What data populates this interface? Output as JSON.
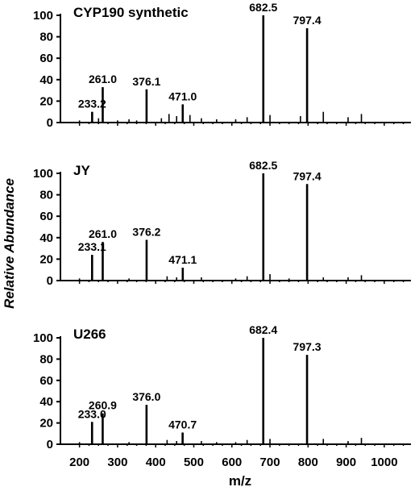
{
  "figure": {
    "ylabel": "Relative Abundance",
    "xlabel": "m/z"
  },
  "chart_data": [
    {
      "type": "bar",
      "title": "CYP190 synthetic",
      "xlim": [
        150,
        1070
      ],
      "ylim": [
        0,
        100
      ],
      "y_ticks": [
        0,
        20,
        40,
        60,
        80,
        100
      ],
      "peaks": [
        {
          "x": 233.2,
          "y": 10,
          "label": "233.2"
        },
        {
          "x": 261.0,
          "y": 33,
          "label": "261.0"
        },
        {
          "x": 376.1,
          "y": 31,
          "label": "376.1"
        },
        {
          "x": 471.0,
          "y": 17,
          "label": "471.0"
        },
        {
          "x": 682.5,
          "y": 100,
          "label": "682.5"
        },
        {
          "x": 797.4,
          "y": 88,
          "label": "797.4"
        },
        {
          "x": 700,
          "y": 7
        },
        {
          "x": 780,
          "y": 6
        },
        {
          "x": 840,
          "y": 10
        },
        {
          "x": 905,
          "y": 5
        },
        {
          "x": 940,
          "y": 8
        },
        {
          "x": 435,
          "y": 8
        },
        {
          "x": 455,
          "y": 6
        },
        {
          "x": 490,
          "y": 7
        },
        {
          "x": 640,
          "y": 5
        },
        {
          "x": 610,
          "y": 3
        },
        {
          "x": 520,
          "y": 4
        },
        {
          "x": 560,
          "y": 3
        },
        {
          "x": 415,
          "y": 4
        },
        {
          "x": 330,
          "y": 3
        },
        {
          "x": 300,
          "y": 2
        },
        {
          "x": 200,
          "y": 2
        },
        {
          "x": 350,
          "y": 2
        },
        {
          "x": 250,
          "y": 4
        }
      ]
    },
    {
      "type": "bar",
      "title": "JY",
      "xlim": [
        150,
        1070
      ],
      "ylim": [
        0,
        100
      ],
      "y_ticks": [
        0,
        20,
        40,
        60,
        80,
        100
      ],
      "peaks": [
        {
          "x": 233.1,
          "y": 24,
          "label": "233.1"
        },
        {
          "x": 261.0,
          "y": 36,
          "label": "261.0"
        },
        {
          "x": 376.2,
          "y": 38,
          "label": "376.2"
        },
        {
          "x": 471.1,
          "y": 12,
          "label": "471.1"
        },
        {
          "x": 682.5,
          "y": 100,
          "label": "682.5"
        },
        {
          "x": 797.4,
          "y": 90,
          "label": "797.4"
        },
        {
          "x": 700,
          "y": 6
        },
        {
          "x": 640,
          "y": 4
        },
        {
          "x": 430,
          "y": 4
        },
        {
          "x": 840,
          "y": 3
        },
        {
          "x": 905,
          "y": 3
        },
        {
          "x": 940,
          "y": 5
        },
        {
          "x": 520,
          "y": 3
        },
        {
          "x": 455,
          "y": 3
        },
        {
          "x": 610,
          "y": 2
        },
        {
          "x": 200,
          "y": 2
        },
        {
          "x": 330,
          "y": 2
        },
        {
          "x": 750,
          "y": 2
        }
      ]
    },
    {
      "type": "bar",
      "title": "U266",
      "xlim": [
        150,
        1070
      ],
      "ylim": [
        0,
        100
      ],
      "y_ticks": [
        0,
        20,
        40,
        60,
        80,
        100
      ],
      "peaks": [
        {
          "x": 233.0,
          "y": 21,
          "label": "233.0"
        },
        {
          "x": 260.9,
          "y": 29,
          "label": "260.9"
        },
        {
          "x": 376.0,
          "y": 37,
          "label": "376.0"
        },
        {
          "x": 470.7,
          "y": 11,
          "label": "470.7"
        },
        {
          "x": 682.4,
          "y": 100,
          "label": "682.4"
        },
        {
          "x": 797.3,
          "y": 84,
          "label": "797.3"
        },
        {
          "x": 640,
          "y": 4
        },
        {
          "x": 700,
          "y": 5
        },
        {
          "x": 840,
          "y": 5
        },
        {
          "x": 940,
          "y": 6
        },
        {
          "x": 430,
          "y": 4
        },
        {
          "x": 455,
          "y": 3
        },
        {
          "x": 520,
          "y": 3
        },
        {
          "x": 905,
          "y": 3
        },
        {
          "x": 610,
          "y": 2
        },
        {
          "x": 200,
          "y": 2
        },
        {
          "x": 330,
          "y": 2
        },
        {
          "x": 560,
          "y": 2
        }
      ]
    }
  ],
  "x_ticks": [
    200,
    300,
    400,
    500,
    600,
    700,
    800,
    900,
    1000
  ]
}
